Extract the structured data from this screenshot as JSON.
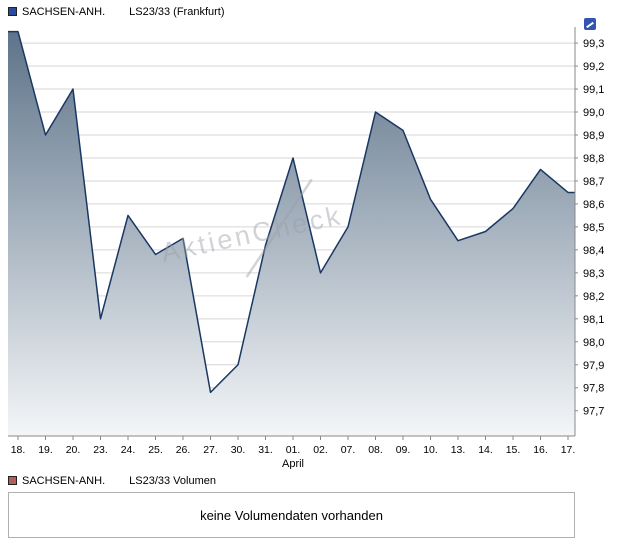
{
  "price_panel": {
    "legend": {
      "marker_color": "#2b4aa0",
      "name": "SACHSEN-ANH.",
      "series": "LS23/33 (Frankfurt)"
    }
  },
  "watermark": "AktienCheck",
  "chart_data": {
    "type": "area",
    "title": "SACHSEN-ANH. LS23/33 (Frankfurt)",
    "x_labels": [
      "18.",
      "19.",
      "20.",
      "23.",
      "24.",
      "25.",
      "26.",
      "27.",
      "30.",
      "31.",
      "01.",
      "02.",
      "07.",
      "08.",
      "09.",
      "10.",
      "13.",
      "14.",
      "15.",
      "16.",
      "17."
    ],
    "month_label": "April",
    "values": [
      99.35,
      98.9,
      99.1,
      98.1,
      98.55,
      98.38,
      98.45,
      97.78,
      97.9,
      98.42,
      98.8,
      98.3,
      98.5,
      99.0,
      98.92,
      98.62,
      98.44,
      98.48,
      98.58,
      98.75,
      98.65
    ],
    "ylim": [
      97.59,
      99.37
    ],
    "yticks": [
      99.3,
      99.2,
      99.1,
      99.0,
      98.9,
      98.8,
      98.7,
      98.6,
      98.5,
      98.4,
      98.3,
      98.2,
      98.1,
      98.0,
      97.9,
      97.8,
      97.7
    ],
    "ytick_labels": [
      "99,3",
      "99,2",
      "99,1",
      "99,0",
      "98,9",
      "98,8",
      "98,7",
      "98,6",
      "98,5",
      "98,4",
      "98,3",
      "98,2",
      "98,1",
      "98,0",
      "97,9",
      "97,8",
      "97,7"
    ],
    "grid": true,
    "legend_position": "top-left",
    "line_color": "#1a3763",
    "fill_top": "#5c7288",
    "fill_bottom": "#f4f6f8"
  },
  "volume_panel": {
    "legend": {
      "marker_color": "#b06055",
      "name": "SACHSEN-ANH.",
      "series": "LS23/33 Volumen"
    },
    "message": "keine Volumendaten vorhanden"
  }
}
